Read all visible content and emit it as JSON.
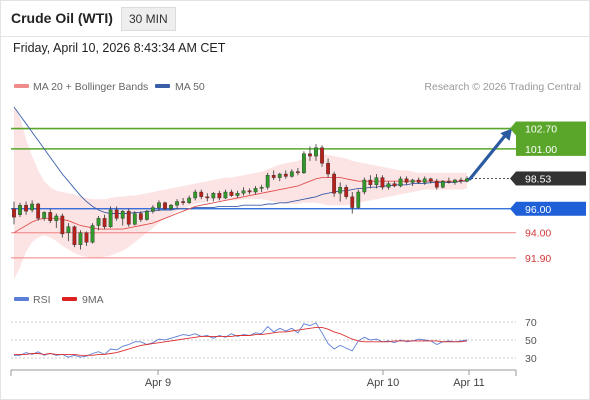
{
  "header": {
    "instrument": "Crude Oil (WTI)",
    "timeframe": "30 MIN"
  },
  "datetime": "Friday, April 10, 2026 8:43:34 AM CET",
  "legend": {
    "ma20": "MA 20 + Bollinger Bands",
    "ma50": "MA 50",
    "copyright": "Research © 2026 Trading Central"
  },
  "rsi_legend": {
    "rsi": "RSI",
    "ma9": "9MA"
  },
  "colors": {
    "candle_up": "#2f9a2a",
    "candle_down": "#b8201b",
    "bollinger_fill": "#fde4e4",
    "ma20": "#e05050",
    "ma50": "#3a5fa8",
    "resistance": "#5aa62a",
    "support": "#1f5fd8",
    "support_weak": "#f08080",
    "current": "#333333",
    "arrow": "#2b5aa0",
    "rsi": "#5b7fd6",
    "rsi_ma": "#dd3030"
  },
  "chart_data": {
    "type": "candlestick",
    "x_ticks": [
      "Apr 9",
      "Apr 10",
      "Apr 11"
    ],
    "price_range": [
      89.8,
      105.5
    ],
    "current_price": 98.53,
    "levels": [
      {
        "value": 102.7,
        "label": "102.70",
        "kind": "resistance"
      },
      {
        "value": 101.0,
        "label": "101.00",
        "kind": "resistance"
      },
      {
        "value": 98.53,
        "label": "98.53",
        "kind": "current"
      },
      {
        "value": 96.0,
        "label": "96.00",
        "kind": "support"
      },
      {
        "value": 94.0,
        "label": "94.00",
        "kind": "support-weak"
      },
      {
        "value": 91.9,
        "label": "91.90",
        "kind": "support-weak"
      }
    ],
    "forecast_arrow": {
      "from": 98.5,
      "to": 102.7
    },
    "candles": [
      {
        "o": 96.0,
        "h": 96.6,
        "l": 94.7,
        "c": 95.3
      },
      {
        "o": 95.5,
        "h": 96.5,
        "l": 95.3,
        "c": 96.3
      },
      {
        "o": 96.3,
        "h": 96.6,
        "l": 95.5,
        "c": 95.8
      },
      {
        "o": 95.9,
        "h": 96.7,
        "l": 95.7,
        "c": 96.4
      },
      {
        "o": 96.4,
        "h": 96.5,
        "l": 95.0,
        "c": 95.2
      },
      {
        "o": 95.2,
        "h": 95.8,
        "l": 95.0,
        "c": 95.7
      },
      {
        "o": 95.7,
        "h": 96.0,
        "l": 94.8,
        "c": 95.0
      },
      {
        "o": 95.0,
        "h": 95.6,
        "l": 94.4,
        "c": 95.4
      },
      {
        "o": 95.4,
        "h": 95.6,
        "l": 93.6,
        "c": 93.9
      },
      {
        "o": 94.0,
        "h": 94.8,
        "l": 93.3,
        "c": 94.5
      },
      {
        "o": 94.5,
        "h": 94.6,
        "l": 92.8,
        "c": 93.0
      },
      {
        "o": 93.0,
        "h": 94.2,
        "l": 92.6,
        "c": 94.0
      },
      {
        "o": 94.0,
        "h": 94.1,
        "l": 92.9,
        "c": 93.2
      },
      {
        "o": 93.2,
        "h": 94.8,
        "l": 93.1,
        "c": 94.6
      },
      {
        "o": 94.6,
        "h": 95.4,
        "l": 94.2,
        "c": 95.2
      },
      {
        "o": 95.2,
        "h": 95.5,
        "l": 94.3,
        "c": 94.5
      },
      {
        "o": 94.5,
        "h": 96.2,
        "l": 94.4,
        "c": 95.9
      },
      {
        "o": 95.9,
        "h": 96.2,
        "l": 95.0,
        "c": 95.2
      },
      {
        "o": 95.2,
        "h": 95.9,
        "l": 94.6,
        "c": 95.8
      },
      {
        "o": 95.8,
        "h": 96.0,
        "l": 94.5,
        "c": 94.7
      },
      {
        "o": 94.7,
        "h": 95.8,
        "l": 94.6,
        "c": 95.6
      },
      {
        "o": 95.6,
        "h": 95.8,
        "l": 94.9,
        "c": 95.1
      },
      {
        "o": 95.1,
        "h": 95.9,
        "l": 95.0,
        "c": 95.8
      },
      {
        "o": 95.8,
        "h": 96.3,
        "l": 95.6,
        "c": 96.1
      },
      {
        "o": 96.1,
        "h": 96.7,
        "l": 95.8,
        "c": 96.5
      },
      {
        "o": 96.5,
        "h": 96.6,
        "l": 95.9,
        "c": 96.0
      },
      {
        "o": 96.0,
        "h": 96.4,
        "l": 95.9,
        "c": 96.3
      },
      {
        "o": 96.3,
        "h": 96.8,
        "l": 96.0,
        "c": 96.6
      },
      {
        "o": 96.6,
        "h": 96.9,
        "l": 96.3,
        "c": 96.5
      },
      {
        "o": 96.5,
        "h": 97.1,
        "l": 96.4,
        "c": 96.9
      },
      {
        "o": 96.9,
        "h": 97.6,
        "l": 96.7,
        "c": 97.4
      },
      {
        "o": 97.4,
        "h": 97.6,
        "l": 96.8,
        "c": 97.0
      },
      {
        "o": 97.0,
        "h": 97.3,
        "l": 96.6,
        "c": 96.9
      },
      {
        "o": 96.9,
        "h": 97.4,
        "l": 96.6,
        "c": 97.3
      },
      {
        "o": 97.3,
        "h": 97.5,
        "l": 96.7,
        "c": 96.9
      },
      {
        "o": 96.9,
        "h": 97.6,
        "l": 96.8,
        "c": 97.4
      },
      {
        "o": 97.4,
        "h": 97.6,
        "l": 97.0,
        "c": 97.1
      },
      {
        "o": 97.1,
        "h": 97.5,
        "l": 96.9,
        "c": 97.3
      },
      {
        "o": 97.3,
        "h": 97.8,
        "l": 97.1,
        "c": 97.5
      },
      {
        "o": 97.5,
        "h": 97.7,
        "l": 97.2,
        "c": 97.4
      },
      {
        "o": 97.4,
        "h": 97.9,
        "l": 97.2,
        "c": 97.7
      },
      {
        "o": 97.7,
        "h": 98.0,
        "l": 97.4,
        "c": 97.8
      },
      {
        "o": 97.8,
        "h": 99.0,
        "l": 97.6,
        "c": 98.8
      },
      {
        "o": 98.8,
        "h": 99.2,
        "l": 98.4,
        "c": 98.6
      },
      {
        "o": 98.6,
        "h": 99.0,
        "l": 98.3,
        "c": 98.9
      },
      {
        "o": 98.9,
        "h": 99.2,
        "l": 98.5,
        "c": 98.7
      },
      {
        "o": 98.7,
        "h": 99.3,
        "l": 98.6,
        "c": 99.1
      },
      {
        "o": 99.1,
        "h": 99.4,
        "l": 98.8,
        "c": 99.0
      },
      {
        "o": 99.0,
        "h": 100.8,
        "l": 98.9,
        "c": 100.6
      },
      {
        "o": 100.6,
        "h": 101.2,
        "l": 100.0,
        "c": 100.4
      },
      {
        "o": 100.4,
        "h": 101.4,
        "l": 100.0,
        "c": 101.1
      },
      {
        "o": 101.1,
        "h": 101.3,
        "l": 99.5,
        "c": 99.8
      },
      {
        "o": 99.8,
        "h": 100.2,
        "l": 98.6,
        "c": 98.9
      },
      {
        "o": 98.9,
        "h": 99.1,
        "l": 97.0,
        "c": 97.3
      },
      {
        "o": 97.3,
        "h": 98.2,
        "l": 96.6,
        "c": 97.8
      },
      {
        "o": 97.8,
        "h": 98.0,
        "l": 96.8,
        "c": 97.0
      },
      {
        "o": 97.0,
        "h": 97.4,
        "l": 95.6,
        "c": 96.1
      },
      {
        "o": 96.1,
        "h": 97.6,
        "l": 96.0,
        "c": 97.4
      },
      {
        "o": 97.4,
        "h": 98.6,
        "l": 97.2,
        "c": 98.4
      },
      {
        "o": 98.4,
        "h": 98.8,
        "l": 97.7,
        "c": 98.0
      },
      {
        "o": 98.0,
        "h": 98.9,
        "l": 97.7,
        "c": 98.6
      },
      {
        "o": 98.6,
        "h": 98.8,
        "l": 97.6,
        "c": 97.8
      },
      {
        "o": 97.8,
        "h": 98.3,
        "l": 97.6,
        "c": 98.1
      },
      {
        "o": 98.1,
        "h": 98.3,
        "l": 97.8,
        "c": 97.9
      },
      {
        "o": 97.9,
        "h": 98.7,
        "l": 97.8,
        "c": 98.5
      },
      {
        "o": 98.5,
        "h": 98.7,
        "l": 98.0,
        "c": 98.2
      },
      {
        "o": 98.2,
        "h": 98.5,
        "l": 97.9,
        "c": 98.4
      },
      {
        "o": 98.4,
        "h": 98.6,
        "l": 98.1,
        "c": 98.2
      },
      {
        "o": 98.2,
        "h": 98.7,
        "l": 98.0,
        "c": 98.5
      },
      {
        "o": 98.5,
        "h": 98.6,
        "l": 98.1,
        "c": 98.3
      },
      {
        "o": 98.3,
        "h": 98.5,
        "l": 97.6,
        "c": 97.8
      },
      {
        "o": 97.8,
        "h": 98.4,
        "l": 97.7,
        "c": 98.3
      },
      {
        "o": 98.3,
        "h": 98.6,
        "l": 98.1,
        "c": 98.2
      },
      {
        "o": 98.2,
        "h": 98.5,
        "l": 98.0,
        "c": 98.4
      },
      {
        "o": 98.4,
        "h": 98.6,
        "l": 98.1,
        "c": 98.3
      },
      {
        "o": 98.3,
        "h": 98.7,
        "l": 98.2,
        "c": 98.5
      }
    ],
    "ma20": [
      94.0,
      94.3,
      94.6,
      94.9,
      95.1,
      95.2,
      95.2,
      95.2,
      95.1,
      95.0,
      94.8,
      94.6,
      94.5,
      94.4,
      94.3,
      94.3,
      94.3,
      94.3,
      94.3,
      94.4,
      94.5,
      94.6,
      94.7,
      94.8,
      95.0,
      95.2,
      95.4,
      95.6,
      95.8,
      96.0,
      96.2,
      96.3,
      96.4,
      96.5,
      96.6,
      96.7,
      96.8,
      96.9,
      97.0,
      97.1,
      97.2,
      97.3,
      97.4,
      97.5,
      97.6,
      97.7,
      97.8,
      97.9,
      98.1,
      98.3,
      98.5,
      98.6,
      98.6,
      98.6,
      98.6,
      98.5,
      98.4,
      98.3,
      98.3,
      98.3,
      98.3,
      98.3,
      98.3,
      98.3,
      98.3,
      98.3,
      98.3,
      98.3,
      98.3,
      98.3,
      98.3,
      98.3,
      98.3,
      98.3,
      98.3,
      98.4
    ],
    "bb_upper": [
      104.6,
      103.6,
      101.8,
      100.4,
      99.2,
      98.3,
      97.8,
      97.5,
      97.4,
      97.3,
      97.2,
      97.0,
      96.9,
      96.8,
      96.8,
      96.8,
      96.9,
      97.0,
      97.0,
      97.1,
      97.1,
      97.2,
      97.3,
      97.4,
      97.5,
      97.6,
      97.7,
      97.8,
      97.9,
      98.0,
      98.1,
      98.2,
      98.3,
      98.4,
      98.5,
      98.6,
      98.6,
      98.7,
      98.8,
      98.9,
      99.0,
      99.1,
      99.3,
      99.5,
      99.7,
      99.8,
      99.9,
      100.0,
      100.2,
      100.4,
      100.5,
      100.6,
      100.5,
      100.4,
      100.3,
      100.2,
      100.0,
      99.9,
      99.8,
      99.7,
      99.6,
      99.5,
      99.4,
      99.3,
      99.2,
      99.2,
      99.1,
      99.0,
      99.0,
      99.0,
      99.0,
      99.0,
      99.0,
      99.0,
      99.0,
      99.0
    ],
    "bb_lower": [
      90.1,
      91.1,
      92.4,
      93.2,
      93.6,
      93.8,
      93.6,
      93.3,
      92.9,
      92.6,
      92.3,
      92.1,
      92.0,
      91.9,
      91.9,
      92.0,
      92.1,
      92.3,
      92.5,
      92.8,
      93.2,
      93.6,
      94.0,
      94.4,
      94.8,
      95.2,
      95.5,
      95.8,
      96.0,
      96.2,
      96.4,
      96.5,
      96.6,
      96.7,
      96.7,
      96.7,
      96.7,
      96.7,
      96.8,
      96.8,
      96.8,
      96.8,
      96.7,
      96.6,
      96.5,
      96.4,
      96.4,
      96.4,
      96.5,
      96.5,
      96.5,
      96.4,
      96.3,
      96.3,
      96.3,
      96.3,
      96.4,
      96.5,
      96.6,
      96.7,
      96.8,
      96.9,
      97.0,
      97.1,
      97.2,
      97.3,
      97.4,
      97.5,
      97.6,
      97.6,
      97.6,
      97.6,
      97.6,
      97.6,
      97.6,
      97.7
    ],
    "ma50": [
      104.5,
      103.8,
      103.1,
      102.4,
      101.7,
      101.0,
      100.3,
      99.6,
      98.9,
      98.3,
      97.7,
      97.1,
      96.6,
      96.2,
      95.9,
      95.7,
      95.6,
      95.6,
      95.6,
      95.6,
      95.7,
      95.7,
      95.8,
      95.8,
      95.9,
      95.9,
      95.9,
      96.0,
      96.0,
      96.0,
      96.1,
      96.1,
      96.1,
      96.1,
      96.2,
      96.2,
      96.2,
      96.2,
      96.3,
      96.3,
      96.3,
      96.3,
      96.4,
      96.4,
      96.5,
      96.5,
      96.6,
      96.7,
      96.8,
      96.9,
      97.0,
      97.2,
      97.3,
      97.4,
      97.5,
      97.5,
      97.6,
      97.7,
      97.7,
      97.8,
      97.8,
      97.9,
      97.9,
      98.0,
      98.0,
      98.0,
      98.1,
      98.1,
      98.1,
      98.2,
      98.2,
      98.2,
      98.2,
      98.2,
      98.3,
      98.3
    ],
    "rsi_panel": {
      "y_ticks": [
        70,
        50,
        30
      ],
      "range": [
        20,
        80
      ],
      "rsi": [
        33,
        33,
        36,
        34,
        37,
        33,
        35,
        33,
        34,
        31,
        33,
        31,
        32,
        35,
        37,
        34,
        40,
        39,
        43,
        45,
        48,
        48,
        45,
        47,
        51,
        50,
        52,
        54,
        56,
        55,
        57,
        54,
        55,
        52,
        55,
        53,
        57,
        54,
        56,
        55,
        58,
        57,
        65,
        59,
        63,
        60,
        63,
        58,
        68,
        66,
        69,
        58,
        46,
        40,
        44,
        41,
        38,
        49,
        53,
        50,
        51,
        48,
        49,
        47,
        50,
        48,
        49,
        51,
        50,
        49,
        45,
        48,
        49,
        48,
        49,
        50
      ],
      "ma9": [
        34,
        34,
        34,
        35,
        35,
        34,
        35,
        34,
        34,
        34,
        34,
        33,
        33,
        33,
        34,
        34,
        35,
        36,
        38,
        40,
        42,
        44,
        45,
        46,
        47,
        48,
        49,
        50,
        51,
        52,
        53,
        54,
        54,
        54,
        54,
        54,
        54,
        55,
        55,
        55,
        56,
        56,
        57,
        58,
        59,
        59,
        60,
        61,
        62,
        63,
        64,
        64,
        62,
        59,
        57,
        54,
        51,
        49,
        48,
        48,
        48,
        48,
        48,
        49,
        49,
        49,
        49,
        49,
        49,
        49,
        49,
        48,
        48,
        48,
        48,
        49
      ]
    }
  }
}
